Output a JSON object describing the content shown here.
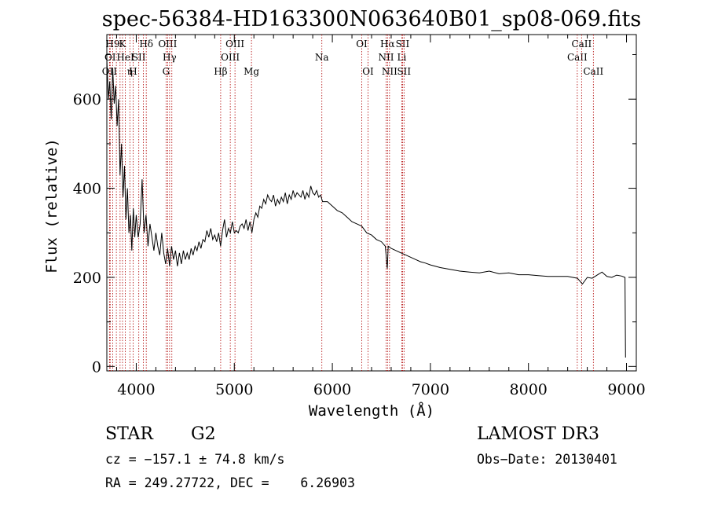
{
  "chart_data": {
    "type": "line",
    "title": "spec-56384-HD163300N063640B01_sp08-069.fits",
    "xlabel": "Wavelength (Å)",
    "ylabel": "Flux (relative)",
    "xlim": [
      3700,
      9100
    ],
    "ylim": [
      -10,
      745
    ],
    "xticks": [
      4000,
      5000,
      6000,
      7000,
      8000,
      9000
    ],
    "yticks": [
      0,
      200,
      400,
      600
    ],
    "grid": false,
    "series": [
      {
        "color": "#000000",
        "points": [
          [
            3700,
            690
          ],
          [
            3715,
            600
          ],
          [
            3730,
            640
          ],
          [
            3745,
            555
          ],
          [
            3760,
            670
          ],
          [
            3775,
            590
          ],
          [
            3790,
            630
          ],
          [
            3805,
            540
          ],
          [
            3820,
            600
          ],
          [
            3835,
            430
          ],
          [
            3850,
            500
          ],
          [
            3865,
            380
          ],
          [
            3880,
            450
          ],
          [
            3895,
            330
          ],
          [
            3910,
            400
          ],
          [
            3925,
            300
          ],
          [
            3940,
            340
          ],
          [
            3955,
            260
          ],
          [
            3970,
            355
          ],
          [
            3985,
            290
          ],
          [
            4000,
            340
          ],
          [
            4020,
            290
          ],
          [
            4040,
            320
          ],
          [
            4060,
            420
          ],
          [
            4080,
            300
          ],
          [
            4100,
            340
          ],
          [
            4120,
            270
          ],
          [
            4140,
            320
          ],
          [
            4160,
            290
          ],
          [
            4180,
            260
          ],
          [
            4200,
            300
          ],
          [
            4220,
            270
          ],
          [
            4240,
            250
          ],
          [
            4260,
            300
          ],
          [
            4280,
            255
          ],
          [
            4300,
            230
          ],
          [
            4320,
            265
          ],
          [
            4340,
            225
          ],
          [
            4360,
            270
          ],
          [
            4380,
            240
          ],
          [
            4400,
            260
          ],
          [
            4420,
            225
          ],
          [
            4440,
            255
          ],
          [
            4460,
            230
          ],
          [
            4480,
            260
          ],
          [
            4500,
            240
          ],
          [
            4520,
            255
          ],
          [
            4540,
            240
          ],
          [
            4560,
            265
          ],
          [
            4580,
            250
          ],
          [
            4600,
            270
          ],
          [
            4620,
            260
          ],
          [
            4640,
            280
          ],
          [
            4660,
            265
          ],
          [
            4680,
            285
          ],
          [
            4700,
            280
          ],
          [
            4720,
            305
          ],
          [
            4740,
            290
          ],
          [
            4760,
            310
          ],
          [
            4780,
            285
          ],
          [
            4800,
            295
          ],
          [
            4820,
            280
          ],
          [
            4840,
            300
          ],
          [
            4860,
            270
          ],
          [
            4880,
            305
          ],
          [
            4900,
            330
          ],
          [
            4920,
            290
          ],
          [
            4940,
            310
          ],
          [
            4960,
            300
          ],
          [
            4980,
            325
          ],
          [
            5000,
            300
          ],
          [
            5020,
            305
          ],
          [
            5040,
            300
          ],
          [
            5060,
            315
          ],
          [
            5080,
            320
          ],
          [
            5100,
            310
          ],
          [
            5120,
            330
          ],
          [
            5140,
            305
          ],
          [
            5160,
            325
          ],
          [
            5180,
            300
          ],
          [
            5200,
            330
          ],
          [
            5220,
            345
          ],
          [
            5240,
            335
          ],
          [
            5260,
            360
          ],
          [
            5280,
            355
          ],
          [
            5300,
            375
          ],
          [
            5320,
            365
          ],
          [
            5340,
            385
          ],
          [
            5360,
            375
          ],
          [
            5380,
            370
          ],
          [
            5400,
            385
          ],
          [
            5420,
            360
          ],
          [
            5440,
            375
          ],
          [
            5460,
            365
          ],
          [
            5480,
            380
          ],
          [
            5500,
            370
          ],
          [
            5520,
            390
          ],
          [
            5540,
            365
          ],
          [
            5560,
            385
          ],
          [
            5580,
            375
          ],
          [
            5600,
            395
          ],
          [
            5620,
            380
          ],
          [
            5640,
            390
          ],
          [
            5660,
            385
          ],
          [
            5680,
            380
          ],
          [
            5700,
            395
          ],
          [
            5720,
            375
          ],
          [
            5740,
            390
          ],
          [
            5760,
            380
          ],
          [
            5780,
            405
          ],
          [
            5800,
            390
          ],
          [
            5820,
            385
          ],
          [
            5840,
            395
          ],
          [
            5860,
            380
          ],
          [
            5880,
            385
          ],
          [
            5900,
            370
          ],
          [
            5950,
            370
          ],
          [
            6000,
            360
          ],
          [
            6050,
            350
          ],
          [
            6100,
            345
          ],
          [
            6150,
            335
          ],
          [
            6200,
            325
          ],
          [
            6250,
            320
          ],
          [
            6300,
            315
          ],
          [
            6350,
            300
          ],
          [
            6400,
            295
          ],
          [
            6450,
            285
          ],
          [
            6500,
            280
          ],
          [
            6540,
            270
          ],
          [
            6560,
            220
          ],
          [
            6570,
            270
          ],
          [
            6600,
            265
          ],
          [
            6650,
            260
          ],
          [
            6700,
            255
          ],
          [
            6750,
            250
          ],
          [
            6800,
            245
          ],
          [
            6850,
            240
          ],
          [
            6900,
            235
          ],
          [
            6950,
            232
          ],
          [
            7000,
            228
          ],
          [
            7100,
            222
          ],
          [
            7200,
            218
          ],
          [
            7300,
            214
          ],
          [
            7400,
            212
          ],
          [
            7500,
            210
          ],
          [
            7600,
            214
          ],
          [
            7700,
            208
          ],
          [
            7800,
            210
          ],
          [
            7900,
            206
          ],
          [
            8000,
            206
          ],
          [
            8100,
            204
          ],
          [
            8200,
            202
          ],
          [
            8300,
            202
          ],
          [
            8400,
            202
          ],
          [
            8500,
            198
          ],
          [
            8550,
            185
          ],
          [
            8600,
            200
          ],
          [
            8650,
            198
          ],
          [
            8700,
            205
          ],
          [
            8750,
            212
          ],
          [
            8800,
            202
          ],
          [
            8850,
            200
          ],
          [
            8900,
            205
          ],
          [
            8950,
            203
          ],
          [
            8985,
            200
          ],
          [
            8990,
            20
          ]
        ]
      }
    ],
    "spectral_lines": [
      {
        "wl": 3727,
        "label": "OII",
        "row": 3
      },
      {
        "wl": 3734,
        "label": "OI",
        "row": 2
      },
      {
        "wl": 3760,
        "label": "H9",
        "row": 1
      },
      {
        "wl": 3797,
        "label": "",
        "row": 0
      },
      {
        "wl": 3835,
        "label": "",
        "row": 0
      },
      {
        "wl": 3860,
        "label": "K",
        "row": 1
      },
      {
        "wl": 3889,
        "label": "HeI",
        "row": 2
      },
      {
        "wl": 3935,
        "label": "η",
        "row": 3
      },
      {
        "wl": 3968,
        "label": "H",
        "row": 3
      },
      {
        "wl": 4026,
        "label": "SII",
        "row": 2
      },
      {
        "wl": 4072,
        "label": "",
        "row": 0
      },
      {
        "wl": 4102,
        "label": "Hδ",
        "row": 1
      },
      {
        "wl": 4304,
        "label": "G",
        "row": 3
      },
      {
        "wl": 4320,
        "label": "OIII",
        "row": 1
      },
      {
        "wl": 4340,
        "label": "Hγ",
        "row": 2
      },
      {
        "wl": 4363,
        "label": "",
        "row": 0
      },
      {
        "wl": 4861,
        "label": "Hβ",
        "row": 3
      },
      {
        "wl": 4959,
        "label": "OIII",
        "row": 2
      },
      {
        "wl": 5007,
        "label": "OIII",
        "row": 1
      },
      {
        "wl": 5175,
        "label": "Mg",
        "row": 3
      },
      {
        "wl": 5893,
        "label": "Na",
        "row": 2
      },
      {
        "wl": 6300,
        "label": "OI",
        "row": 1
      },
      {
        "wl": 6364,
        "label": "OI",
        "row": 3
      },
      {
        "wl": 6548,
        "label": "NII",
        "row": 2
      },
      {
        "wl": 6563,
        "label": "Hα",
        "row": 1
      },
      {
        "wl": 6583,
        "label": "NII",
        "row": 3
      },
      {
        "wl": 6708,
        "label": "Li",
        "row": 2
      },
      {
        "wl": 6716,
        "label": "SII",
        "row": 1
      },
      {
        "wl": 6731,
        "label": "SII",
        "row": 3
      },
      {
        "wl": 8498,
        "label": "CaII",
        "row": 2
      },
      {
        "wl": 8542,
        "label": "CaII",
        "row": 1
      },
      {
        "wl": 8662,
        "label": "CaII",
        "row": 3
      }
    ],
    "line_color": "#b00000"
  },
  "info": {
    "object_class": "STAR",
    "subclass": "G2",
    "survey": "LAMOST DR3",
    "cz": "cz = −157.1 ± 74.8 km/s",
    "obs_date": "Obs−Date: 20130401",
    "coords": "RA = 249.27722, DEC =    6.26903"
  }
}
